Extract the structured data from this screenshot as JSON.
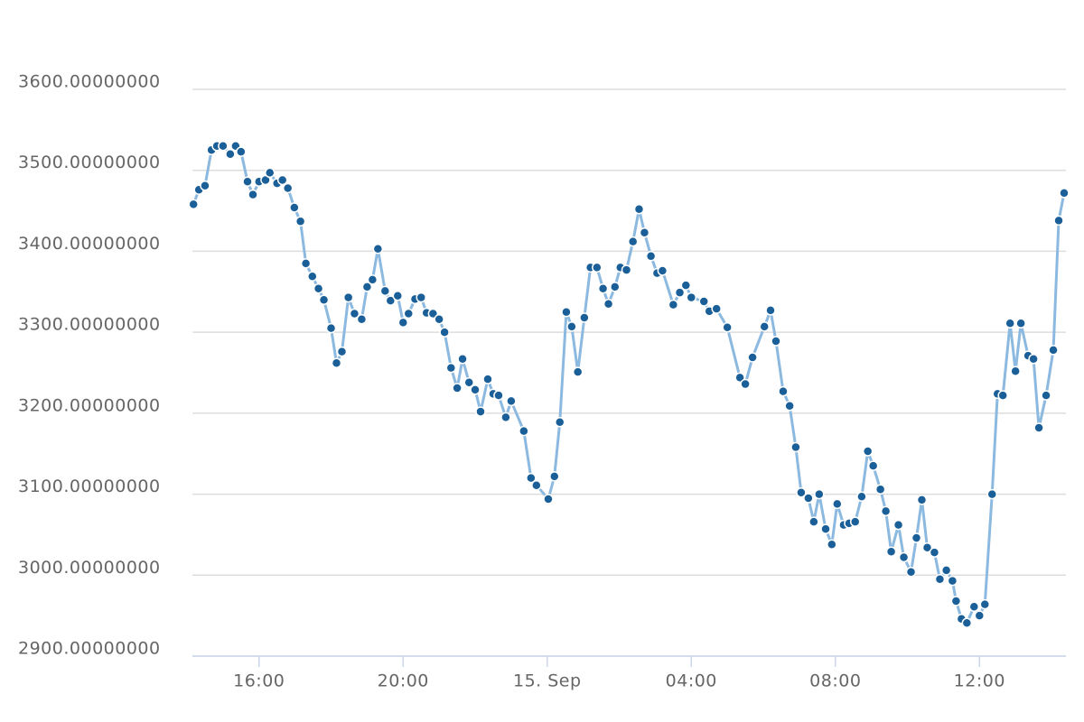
{
  "chart_data": {
    "type": "line",
    "x": [
      14.18,
      14.33,
      14.5,
      14.68,
      14.83,
      15.0,
      15.2,
      15.35,
      15.5,
      15.68,
      15.83,
      16,
      16.18,
      16.3,
      16.5,
      16.65,
      16.8,
      16.98,
      17.15,
      17.3,
      17.48,
      17.65,
      17.8,
      18.0,
      18.15,
      18.3,
      18.48,
      18.65,
      18.85,
      19.0,
      19.15,
      19.3,
      19.5,
      19.65,
      19.85,
      20.0,
      20.15,
      20.33,
      20.5,
      20.65,
      20.83,
      21.0,
      21.15,
      21.33,
      21.5,
      21.65,
      21.83,
      22.0,
      22.15,
      22.35,
      22.5,
      22.65,
      22.85,
      23.0,
      23.35,
      23.55,
      23.7,
      24.03,
      24.2,
      24.35,
      24.53,
      24.68,
      24.85,
      25.03,
      25.2,
      25.38,
      25.55,
      25.7,
      25.88,
      26.03,
      26.2,
      26.38,
      26.55,
      26.7,
      26.88,
      27.05,
      27.2,
      27.5,
      27.68,
      27.85,
      28.0,
      28.35,
      28.5,
      28.7,
      29.0,
      29.35,
      29.5,
      29.7,
      30.03,
      30.2,
      30.35,
      30.55,
      30.73,
      30.9,
      31.05,
      31.25,
      31.4,
      31.55,
      31.73,
      31.9,
      32.05,
      32.23,
      32.38,
      32.55,
      32.73,
      32.9,
      33.05,
      33.25,
      33.4,
      33.55,
      33.75,
      33.9,
      34.1,
      34.25,
      34.4,
      34.55,
      34.75,
      34.9,
      35.08,
      35.25,
      35.35,
      35.5,
      35.65,
      35.85,
      36.0,
      36.15,
      36.35,
      36.5,
      36.65,
      36.85,
      37.0,
      37.15,
      37.35,
      37.5,
      37.65,
      37.85,
      38.05,
      38.2,
      38.35
    ],
    "values": [
      3458,
      3476,
      3481,
      3525,
      3530,
      3530,
      3520,
      3530,
      3523,
      3486,
      3470,
      3486,
      3488,
      3497,
      3484,
      3488,
      3478,
      3454,
      3437,
      3385,
      3369,
      3354,
      3340,
      3305,
      3262,
      3276,
      3343,
      3323,
      3316,
      3356,
      3365,
      3403,
      3351,
      3339,
      3345,
      3312,
      3323,
      3341,
      3343,
      3324,
      3323,
      3316,
      3300,
      3256,
      3231,
      3267,
      3238,
      3229,
      3202,
      3242,
      3224,
      3222,
      3195,
      3215,
      3178,
      3120,
      3111,
      3094,
      3122,
      3189,
      3325,
      3307,
      3251,
      3318,
      3380,
      3380,
      3354,
      3335,
      3356,
      3380,
      3377,
      3412,
      3452,
      3423,
      3394,
      3373,
      3376,
      3334,
      3349,
      3358,
      3343,
      3338,
      3326,
      3329,
      3306,
      3244,
      3236,
      3269,
      3307,
      3327,
      3289,
      3227,
      3209,
      3158,
      3102,
      3095,
      3066,
      3100,
      3057,
      3038,
      3088,
      3062,
      3064,
      3066,
      3097,
      3153,
      3135,
      3106,
      3079,
      3029,
      3062,
      3022,
      3004,
      3046,
      3093,
      3034,
      3028,
      2995,
      3006,
      2993,
      2968,
      2946,
      2941,
      2961,
      2950,
      2964,
      3100,
      3224,
      3222,
      3311,
      3252,
      3311,
      3271,
      3267,
      3182,
      3222,
      3278,
      3438,
      3472
    ],
    "color": "#8cb9e0",
    "marker_color": "#1b5f98",
    "xlim": [
      14.15,
      38.4
    ],
    "xticks": [
      {
        "value": 16,
        "label": "16:00"
      },
      {
        "value": 20,
        "label": "20:00"
      },
      {
        "value": 24,
        "label": "15. Sep"
      },
      {
        "value": 28,
        "label": "04:00"
      },
      {
        "value": 32,
        "label": "08:00"
      },
      {
        "value": 36,
        "label": "12:00"
      }
    ],
    "ylim": [
      2900,
      3600
    ],
    "yticks": [
      {
        "value": 2900,
        "label": "2900.00000000"
      },
      {
        "value": 3000,
        "label": "3000.00000000"
      },
      {
        "value": 3100,
        "label": "3100.00000000"
      },
      {
        "value": 3200,
        "label": "3200.00000000"
      },
      {
        "value": 3300,
        "label": "3300.00000000"
      },
      {
        "value": 3400,
        "label": "3400.00000000"
      },
      {
        "value": 3500,
        "label": "3500.00000000"
      },
      {
        "value": 3600,
        "label": "3600.00000000"
      }
    ],
    "grid": true
  }
}
